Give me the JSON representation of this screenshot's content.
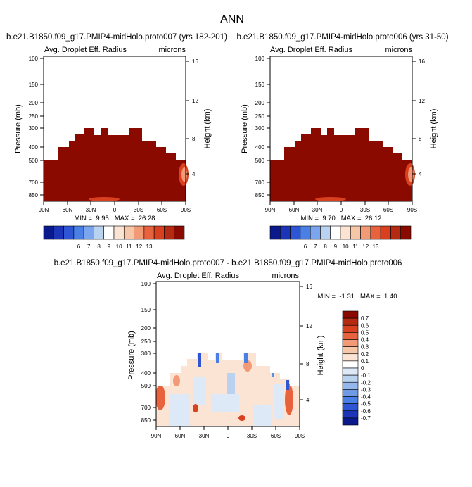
{
  "figure": {
    "title": "ANN"
  },
  "colors": {
    "dark_red": "#8b0a00",
    "mid_red": "#b52a12",
    "warm": "#e8633d",
    "peach": "#f6c6a8",
    "pale": "#fbe4d4",
    "ice": "#dde9f7",
    "light_blue": "#b9d2f0",
    "mid_blue": "#5a8fe0",
    "blue": "#2e56d4",
    "navy": "#0a1a8c"
  },
  "chart_data": [
    {
      "type": "heatmap",
      "title": "b.e21.B1850.f09_g17.PMIP4-midHolo.proto007 (yrs 182-201)",
      "subtitle_left": "Avg. Droplet Eff. Radius",
      "subtitle_right": "microns",
      "xlabel": "",
      "ylabel": "Pressure (mb)",
      "y2label": "Height (km)",
      "xticks": [
        "90N",
        "60N",
        "30N",
        "0",
        "30S",
        "60S",
        "90S"
      ],
      "yticks": [
        100,
        150,
        200,
        250,
        300,
        400,
        500,
        700,
        850
      ],
      "y2ticks": [
        16,
        12,
        8,
        4
      ],
      "stats": "MIN =  9.95   MAX =  26.28",
      "colorbar_labels": [
        "6",
        "7",
        "8",
        "9",
        "10",
        "11",
        "12",
        "13"
      ],
      "colorbar_colors": [
        "#0a1a8c",
        "#1c35b8",
        "#2e56d4",
        "#4a7fe6",
        "#7ba5ee",
        "#b9d2f0",
        "#ffffff",
        "#fbe4d4",
        "#f6c6a8",
        "#f29a76",
        "#e8633d",
        "#d9401f",
        "#b52a12",
        "#8b0a00"
      ]
    },
    {
      "type": "heatmap",
      "title": "b.e21.B1850.f09_g17.PMIP4-midHolo.proto006 (yrs 31-50)",
      "subtitle_left": "Avg. Droplet Eff. Radius",
      "subtitle_right": "microns",
      "xlabel": "",
      "ylabel": "Pressure (mb)",
      "y2label": "Height (km)",
      "xticks": [
        "90N",
        "60N",
        "30N",
        "0",
        "30S",
        "60S",
        "90S"
      ],
      "yticks": [
        100,
        150,
        200,
        250,
        300,
        400,
        500,
        700,
        850
      ],
      "y2ticks": [
        16,
        12,
        8,
        4
      ],
      "stats": "MIN =  9.70   MAX =  26.12",
      "colorbar_labels": [
        "6",
        "7",
        "8",
        "9",
        "10",
        "11",
        "12",
        "13"
      ],
      "colorbar_colors": [
        "#0a1a8c",
        "#1c35b8",
        "#2e56d4",
        "#4a7fe6",
        "#7ba5ee",
        "#b9d2f0",
        "#ffffff",
        "#fbe4d4",
        "#f6c6a8",
        "#f29a76",
        "#e8633d",
        "#d9401f",
        "#b52a12",
        "#8b0a00"
      ]
    },
    {
      "type": "heatmap",
      "title": "b.e21.B1850.f09_g17.PMIP4-midHolo.proto007 - b.e21.B1850.f09_g17.PMIP4-midHolo.proto006",
      "subtitle_left": "Avg. Droplet Eff. Radius",
      "subtitle_right": "microns",
      "xlabel": "",
      "ylabel": "Pressure (mb)",
      "y2label": "Height (km)",
      "xticks": [
        "90N",
        "60N",
        "30N",
        "0",
        "30S",
        "60S",
        "90S"
      ],
      "yticks": [
        100,
        150,
        200,
        250,
        300,
        400,
        500,
        700,
        850
      ],
      "y2ticks": [
        16,
        12,
        8,
        4
      ],
      "stats": "MIN =  -1.31   MAX =  1.40",
      "colorbar_labels": [
        "0.7",
        "0.6",
        "0.5",
        "0.4",
        "0.3",
        "0.2",
        "0.1",
        "0",
        "-0.1",
        "-0.2",
        "-0.3",
        "-0.4",
        "-0.5",
        "-0.6",
        "-0.7"
      ],
      "colorbar_colors": [
        "#8b0a00",
        "#b52a12",
        "#d9401f",
        "#e8633d",
        "#f29a76",
        "#f6c6a8",
        "#fbe4d4",
        "#ffffff",
        "#dde9f7",
        "#b9d2f0",
        "#94b8ec",
        "#6f9be6",
        "#4a7fe6",
        "#2e56d4",
        "#1c35b8",
        "#0a1a8c"
      ]
    }
  ]
}
